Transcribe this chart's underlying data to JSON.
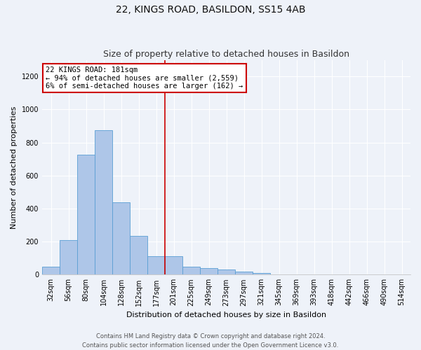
{
  "title": "22, KINGS ROAD, BASILDON, SS15 4AB",
  "subtitle": "Size of property relative to detached houses in Basildon",
  "xlabel": "Distribution of detached houses by size in Basildon",
  "ylabel": "Number of detached properties",
  "bar_labels": [
    "32sqm",
    "56sqm",
    "80sqm",
    "104sqm",
    "128sqm",
    "152sqm",
    "177sqm",
    "201sqm",
    "225sqm",
    "249sqm",
    "273sqm",
    "297sqm",
    "321sqm",
    "345sqm",
    "369sqm",
    "393sqm",
    "418sqm",
    "442sqm",
    "466sqm",
    "490sqm",
    "514sqm"
  ],
  "bar_values": [
    50,
    210,
    725,
    875,
    440,
    235,
    110,
    110,
    47,
    40,
    30,
    20,
    10,
    0,
    0,
    0,
    0,
    0,
    0,
    0,
    0
  ],
  "bar_color": "#aec6e8",
  "bar_edge_color": "#5a9fd4",
  "ylim": [
    0,
    1300
  ],
  "yticks": [
    0,
    200,
    400,
    600,
    800,
    1000,
    1200
  ],
  "line_x_index": 6.5,
  "property_line_color": "#cc0000",
  "annotation_box_text": "22 KINGS ROAD: 181sqm\n← 94% of detached houses are smaller (2,559)\n6% of semi-detached houses are larger (162) →",
  "footer_text": "Contains HM Land Registry data © Crown copyright and database right 2024.\nContains public sector information licensed under the Open Government Licence v3.0.",
  "bg_color": "#eef2f9",
  "grid_color": "#ffffff",
  "title_fontsize": 10,
  "subtitle_fontsize": 9,
  "label_fontsize": 8,
  "tick_fontsize": 7,
  "annotation_fontsize": 7.5,
  "footer_fontsize": 6
}
